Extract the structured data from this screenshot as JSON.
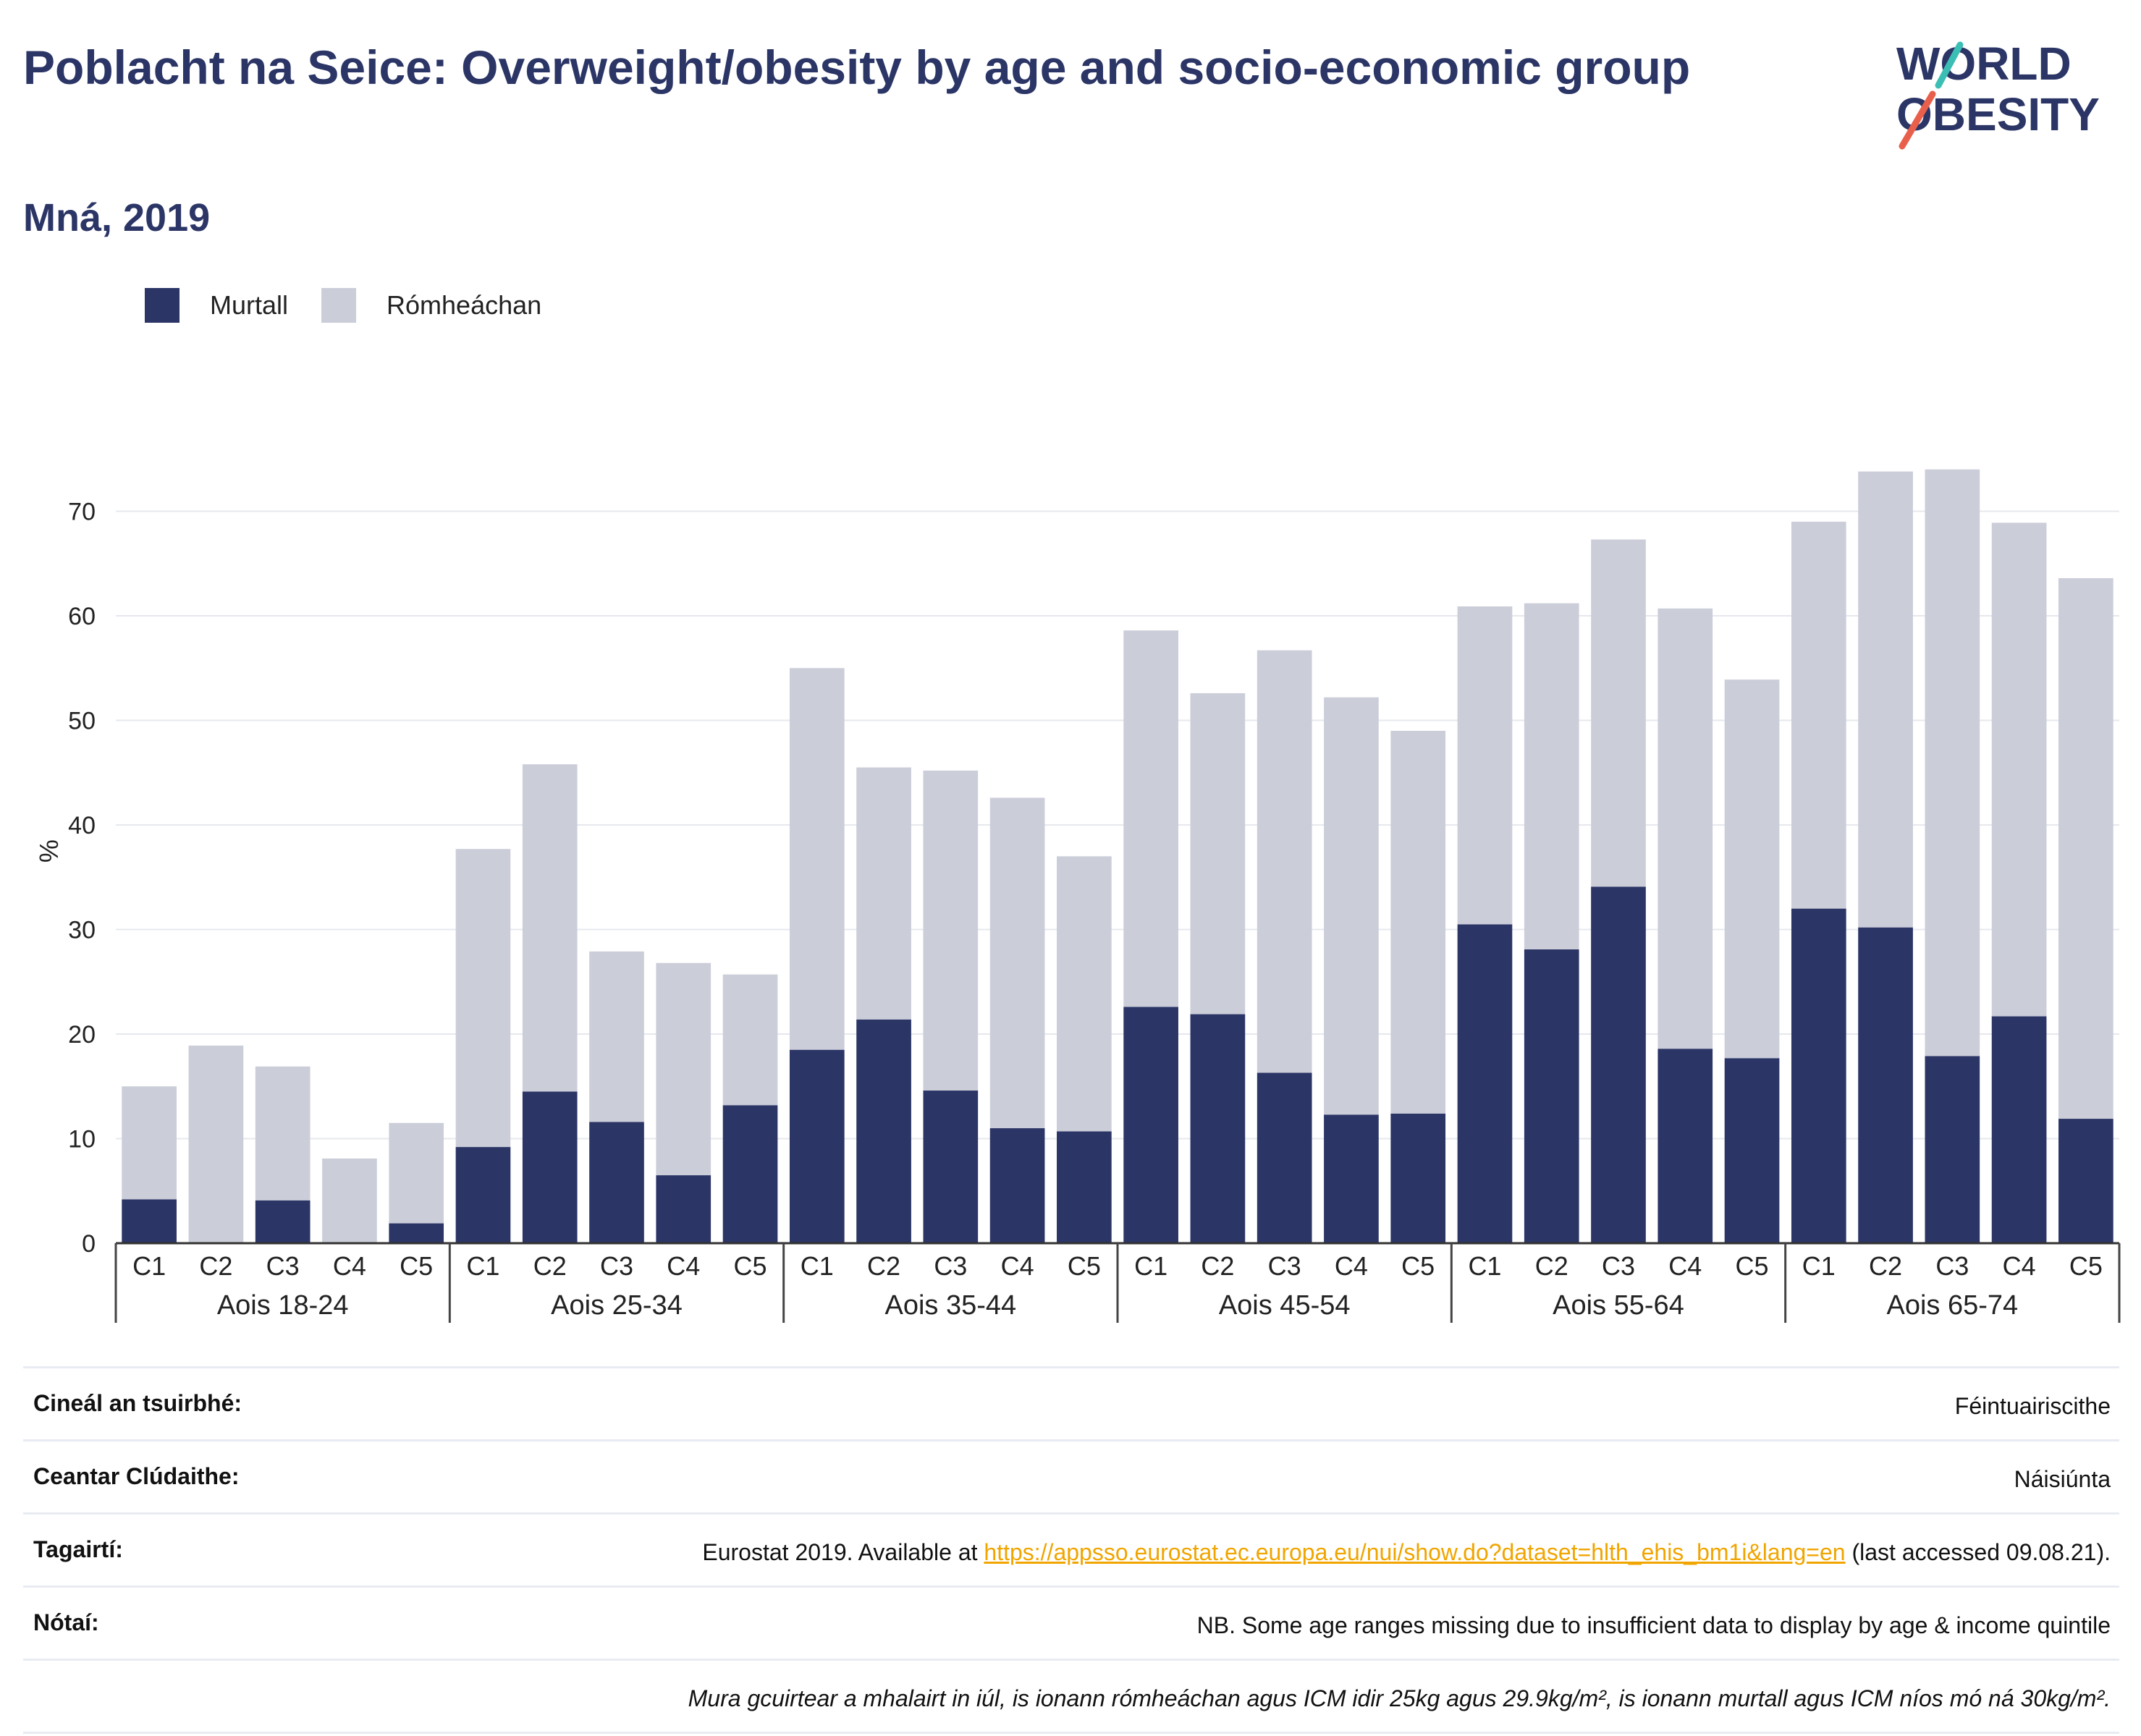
{
  "header": {
    "title": "Poblacht na Seice: Overweight/obesity by age and socio-economic group",
    "subtitle": "Mná, 2019"
  },
  "logo": {
    "line1": "WORLD",
    "line2": "OBESITY"
  },
  "colors": {
    "obese": "#2b3566",
    "overweight": "#cbcdd9",
    "title": "#2b3566",
    "link": "#f0a500"
  },
  "chart_data": {
    "type": "bar",
    "stacked": true,
    "ylabel": "%",
    "ylim": [
      0,
      75
    ],
    "yticks": [
      0,
      10,
      20,
      30,
      40,
      50,
      60,
      70
    ],
    "grid": true,
    "legend_position": "top-left",
    "subcategories": [
      "C1",
      "C2",
      "C3",
      "C4",
      "C5"
    ],
    "groups": [
      "Aois 18-24",
      "Aois 25-34",
      "Aois 35-44",
      "Aois 45-54",
      "Aois 55-64",
      "Aois 65-74"
    ],
    "series": [
      {
        "name": "Murtall",
        "values": [
          4.2,
          0,
          4.1,
          0,
          1.9,
          9.2,
          14.5,
          11.6,
          6.5,
          13.2,
          18.5,
          21.4,
          14.6,
          11.0,
          10.7,
          22.6,
          21.9,
          16.3,
          12.3,
          12.4,
          30.5,
          28.1,
          34.1,
          18.6,
          17.7,
          32.0,
          30.2,
          17.9,
          21.7,
          11.9
        ]
      },
      {
        "name": "Rómheáchan",
        "values": [
          10.8,
          18.9,
          12.8,
          8.1,
          9.6,
          28.5,
          31.3,
          16.3,
          20.3,
          12.5,
          36.5,
          24.1,
          30.6,
          31.6,
          26.3,
          36.0,
          30.7,
          40.4,
          39.9,
          36.6,
          30.4,
          33.1,
          33.2,
          42.1,
          36.2,
          37.0,
          43.6,
          56.1,
          47.2,
          51.7
        ]
      }
    ]
  },
  "info": {
    "rows": [
      {
        "label": "Cineál an tsuirbhé:",
        "value": "Féintuairiscithe"
      },
      {
        "label": "Ceantar Clúdaithe:",
        "value": "Náisiúnta"
      },
      {
        "label": "Tagairtí:",
        "value_prefix": "Eurostat 2019. Available at ",
        "link": "https://appsso.eurostat.ec.europa.eu/nui/show.do?dataset=hlth_ehis_bm1i&lang=en",
        "value_suffix": " (last accessed 09.08.21)."
      },
      {
        "label": "Nótaí:",
        "value": "NB. Some age ranges missing due to insufficient data to display by age & income quintile"
      },
      {
        "label": "",
        "value": "Mura gcuirtear a mhalairt in iúl, is ionann rómheáchan agus ICM idir 25kg agus 29.9kg/m², is ionann murtall agus ICM níos mó ná 30kg/m²."
      }
    ]
  }
}
